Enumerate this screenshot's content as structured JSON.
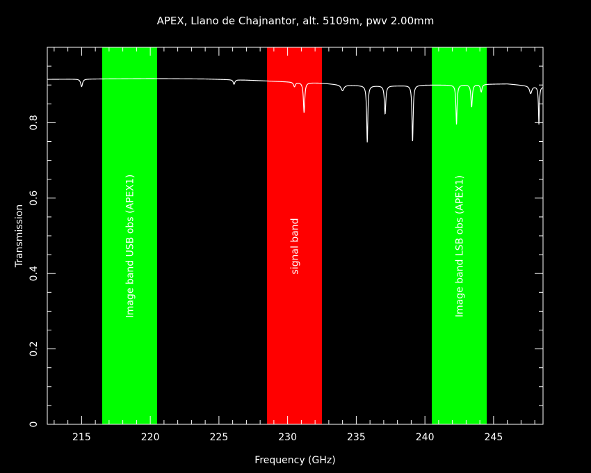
{
  "chart_data": {
    "type": "line",
    "title": "APEX, Llano de Chajnantor, alt. 5109m, pwv 2.00mm",
    "xlabel": "Frequency (GHz)",
    "ylabel": "Transmission",
    "xlim": [
      212.5,
      248.6
    ],
    "ylim": [
      0,
      1.0
    ],
    "xticks": [
      215,
      220,
      225,
      230,
      235,
      240,
      245
    ],
    "xtick_labels": [
      "215",
      "220",
      "225",
      "230",
      "235",
      "240",
      "245"
    ],
    "yticks": [
      0,
      0.2,
      0.4,
      0.6,
      0.8
    ],
    "ytick_labels": [
      "0",
      "0.2",
      "0.4",
      "0.6",
      "0.8"
    ],
    "grid": false,
    "background": "#000000",
    "bands": [
      {
        "label": "Image band USB obs (APEX1)",
        "x0": 216.5,
        "x1": 220.5,
        "color": "#00ff00"
      },
      {
        "label": "signal band",
        "x0": 228.5,
        "x1": 232.5,
        "color": "#ff0000"
      },
      {
        "label": "Image band LSB obs (APEX1)",
        "x0": 240.5,
        "x1": 244.5,
        "color": "#00ff00"
      }
    ],
    "series": [
      {
        "color": "#ffffff",
        "baseline": [
          [
            212.5,
            0.915
          ],
          [
            216.0,
            0.916
          ],
          [
            220.0,
            0.917
          ],
          [
            224.0,
            0.916
          ],
          [
            227.0,
            0.913
          ],
          [
            229.0,
            0.91
          ],
          [
            231.0,
            0.907
          ],
          [
            232.5,
            0.905
          ],
          [
            234.0,
            0.9
          ],
          [
            236.0,
            0.898
          ],
          [
            238.0,
            0.898
          ],
          [
            240.0,
            0.9
          ],
          [
            242.0,
            0.9
          ],
          [
            244.0,
            0.902
          ],
          [
            246.0,
            0.903
          ],
          [
            247.5,
            0.898
          ],
          [
            248.6,
            0.895
          ]
        ],
        "dips": [
          {
            "x": 215.0,
            "depth": 0.02,
            "width": 0.08
          },
          {
            "x": 226.1,
            "depth": 0.012,
            "width": 0.07
          },
          {
            "x": 230.5,
            "depth": 0.012,
            "width": 0.08
          },
          {
            "x": 231.2,
            "depth": 0.08,
            "width": 0.06
          },
          {
            "x": 234.0,
            "depth": 0.015,
            "width": 0.12
          },
          {
            "x": 235.8,
            "depth": 0.15,
            "width": 0.05
          },
          {
            "x": 237.1,
            "depth": 0.075,
            "width": 0.06
          },
          {
            "x": 239.1,
            "depth": 0.15,
            "width": 0.05
          },
          {
            "x": 242.3,
            "depth": 0.105,
            "width": 0.05
          },
          {
            "x": 243.4,
            "depth": 0.06,
            "width": 0.06
          },
          {
            "x": 244.1,
            "depth": 0.02,
            "width": 0.07
          },
          {
            "x": 247.7,
            "depth": 0.02,
            "width": 0.1
          },
          {
            "x": 248.3,
            "depth": 0.1,
            "width": 0.04
          }
        ]
      }
    ]
  }
}
